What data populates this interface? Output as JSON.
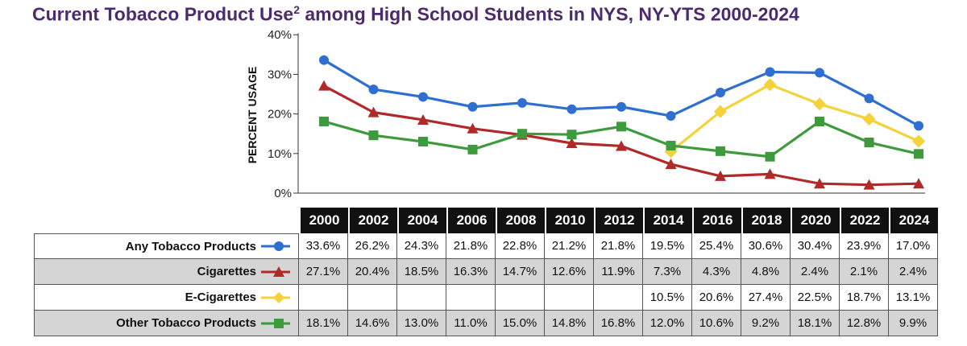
{
  "title": "Current Tobacco Product Use",
  "title_sup": "2",
  "title_rest": " among High School Students in NYS, NY-YTS 2000-2024",
  "chart_data": {
    "type": "line",
    "ylabel": "PERCENT USAGE",
    "ylim": [
      0,
      40
    ],
    "yticks": [
      "0%",
      "10%",
      "20%",
      "30%",
      "40%"
    ],
    "categories": [
      "2000",
      "2002",
      "2004",
      "2006",
      "2008",
      "2010",
      "2012",
      "2014",
      "2016",
      "2018",
      "2020",
      "2022",
      "2024"
    ],
    "series": [
      {
        "name": "Any Tobacco Products",
        "color": "#2e6fcf",
        "marker": "circle",
        "values": [
          33.6,
          26.2,
          24.3,
          21.8,
          22.8,
          21.2,
          21.8,
          19.5,
          25.4,
          30.6,
          30.4,
          23.9,
          17.0
        ],
        "labels": [
          "33.6%",
          "26.2%",
          "24.3%",
          "21.8%",
          "22.8%",
          "21.2%",
          "21.8%",
          "19.5%",
          "25.4%",
          "30.6%",
          "30.4%",
          "23.9%",
          "17.0%"
        ]
      },
      {
        "name": "Cigarettes",
        "color": "#b02a2a",
        "marker": "triangle",
        "values": [
          27.1,
          20.4,
          18.5,
          16.3,
          14.7,
          12.6,
          11.9,
          7.3,
          4.3,
          4.8,
          2.4,
          2.1,
          2.4
        ],
        "labels": [
          "27.1%",
          "20.4%",
          "18.5%",
          "16.3%",
          "14.7%",
          "12.6%",
          "11.9%",
          "7.3%",
          "4.3%",
          "4.8%",
          "2.4%",
          "2.1%",
          "2.4%"
        ]
      },
      {
        "name": "E-Cigarettes",
        "color": "#f5d23a",
        "marker": "diamond",
        "values": [
          null,
          null,
          null,
          null,
          null,
          null,
          null,
          10.5,
          20.6,
          27.4,
          22.5,
          18.7,
          13.1
        ],
        "labels": [
          "",
          "",
          "",
          "",
          "",
          "",
          "",
          "10.5%",
          "20.6%",
          "27.4%",
          "22.5%",
          "18.7%",
          "13.1%"
        ]
      },
      {
        "name": "Other Tobacco Products",
        "color": "#3d9a3d",
        "marker": "square",
        "values": [
          18.1,
          14.6,
          13.0,
          11.0,
          15.0,
          14.8,
          16.8,
          12.0,
          10.6,
          9.2,
          18.1,
          12.8,
          9.9
        ],
        "labels": [
          "18.1%",
          "14.6%",
          "13.0%",
          "11.0%",
          "15.0%",
          "14.8%",
          "16.8%",
          "12.0%",
          "10.6%",
          "9.2%",
          "18.1%",
          "12.8%",
          "9.9%"
        ]
      }
    ]
  }
}
